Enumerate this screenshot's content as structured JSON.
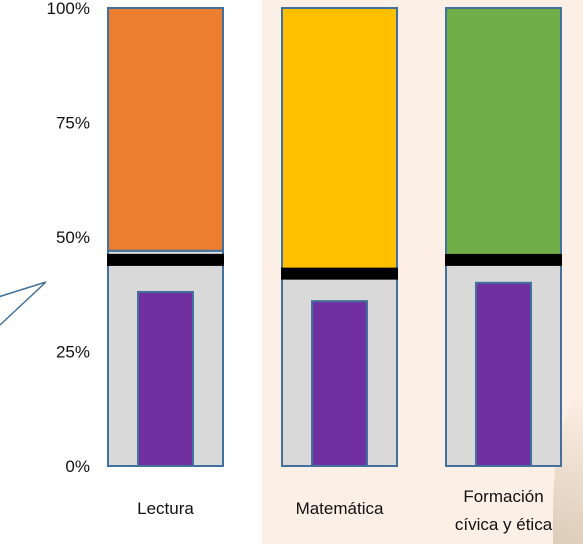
{
  "chart_data": {
    "type": "bar",
    "categories": [
      "Lectura",
      "Matemática",
      "Formación cívica y ética"
    ],
    "category_label_lines": [
      [
        "Lectura"
      ],
      [
        "Matemática"
      ],
      [
        "Formación",
        "cívica y ética"
      ]
    ],
    "y_ticks": [
      "0%",
      "25%",
      "50%",
      "75%",
      "100%"
    ],
    "ylim": [
      0,
      100
    ],
    "series": [
      {
        "values": [
          38,
          36,
          40
        ]
      },
      {
        "values": [
          45,
          42,
          45
        ]
      },
      {
        "values": [
          47,
          42,
          45
        ]
      }
    ],
    "colors": {
      "top_fill": [
        "#ed7d31",
        "#ffc000",
        "#70ad47"
      ],
      "bottom_fill": "#d9d9d9",
      "inner_bar": "#7030a0",
      "outline": "#41719c",
      "marker": "#000000"
    }
  }
}
